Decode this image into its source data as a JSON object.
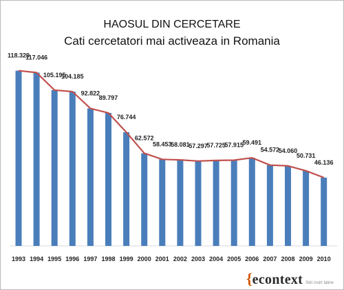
{
  "chart_data": {
    "type": "bar",
    "title": "HAOSUL DIN CERCETARE",
    "subtitle": "Cati cercetatori mai activeaza in Romania",
    "categories": [
      "1993",
      "1994",
      "1995",
      "1996",
      "1997",
      "1998",
      "1999",
      "2000",
      "2001",
      "2002",
      "2003",
      "2004",
      "2005",
      "2006",
      "2007",
      "2008",
      "2009",
      "2010"
    ],
    "values": [
      118329,
      117046,
      105195,
      104185,
      92822,
      89797,
      76744,
      62572,
      58453,
      58081,
      57297,
      57725,
      57915,
      59491,
      54572,
      54060,
      50731,
      46136
    ],
    "value_labels": [
      "118.329",
      "117.046",
      "105.195",
      "104.185",
      "92.822",
      "89.797",
      "76.744",
      "62.572",
      "58.453",
      "58.081",
      "57.297",
      "57.725",
      "57.915",
      "59.491",
      "54.572",
      "54.060",
      "50.731",
      "46.136"
    ],
    "overlay": "line",
    "bar_color": "#4a7ebb",
    "line_color": "#c0504d",
    "grid": false,
    "legend": "none"
  },
  "logo": {
    "brace": "{",
    "text": "econtext",
    "tagline": "Stiri insirt latine"
  }
}
